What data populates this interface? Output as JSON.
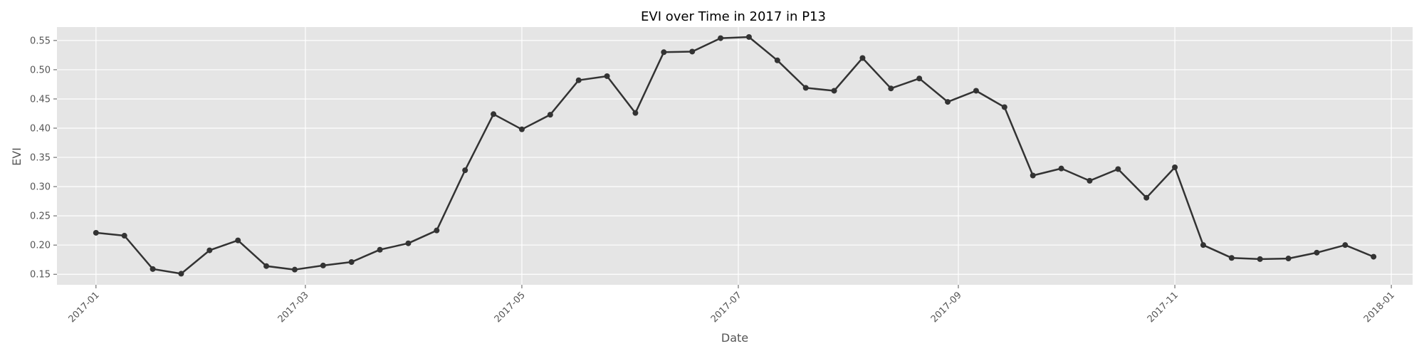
{
  "chart_data": {
    "type": "line",
    "title": "EVI over Time in 2017 in P13",
    "xlabel": "Date",
    "ylabel": "EVI",
    "x_type": "date",
    "xlim": [
      "2016-12-21",
      "2018-01-07"
    ],
    "ylim": [
      0.132,
      0.573
    ],
    "x_ticks": [
      {
        "date": "2017-01-01",
        "label": "2017-01"
      },
      {
        "date": "2017-03-01",
        "label": "2017-03"
      },
      {
        "date": "2017-05-01",
        "label": "2017-05"
      },
      {
        "date": "2017-07-01",
        "label": "2017-07"
      },
      {
        "date": "2017-09-01",
        "label": "2017-09"
      },
      {
        "date": "2017-11-01",
        "label": "2017-11"
      },
      {
        "date": "2018-01-01",
        "label": "2018-01"
      }
    ],
    "y_ticks": [
      {
        "value": 0.15,
        "label": "0.15"
      },
      {
        "value": 0.2,
        "label": "0.20"
      },
      {
        "value": 0.25,
        "label": "0.25"
      },
      {
        "value": 0.3,
        "label": "0.30"
      },
      {
        "value": 0.35,
        "label": "0.35"
      },
      {
        "value": 0.4,
        "label": "0.40"
      },
      {
        "value": 0.45,
        "label": "0.45"
      },
      {
        "value": 0.5,
        "label": "0.50"
      },
      {
        "value": 0.55,
        "label": "0.55"
      }
    ],
    "grid": true,
    "colors": {
      "background": "#e5e5e5",
      "grid": "#ffffff",
      "line": "#333333",
      "marker": "#333333"
    },
    "series": [
      {
        "x": [
          "2017-01-01",
          "2017-01-09",
          "2017-01-17",
          "2017-01-25",
          "2017-02-02",
          "2017-02-10",
          "2017-02-18",
          "2017-02-26",
          "2017-03-06",
          "2017-03-14",
          "2017-03-22",
          "2017-03-30",
          "2017-04-07",
          "2017-04-15",
          "2017-04-23",
          "2017-05-01",
          "2017-05-09",
          "2017-05-17",
          "2017-05-25",
          "2017-06-02",
          "2017-06-10",
          "2017-06-18",
          "2017-06-26",
          "2017-07-04",
          "2017-07-12",
          "2017-07-20",
          "2017-07-28",
          "2017-08-05",
          "2017-08-13",
          "2017-08-21",
          "2017-08-29",
          "2017-09-06",
          "2017-09-14",
          "2017-09-22",
          "2017-09-30",
          "2017-10-08",
          "2017-10-16",
          "2017-10-24",
          "2017-11-01",
          "2017-11-09",
          "2017-11-17",
          "2017-11-25",
          "2017-12-03",
          "2017-12-11",
          "2017-12-19",
          "2017-12-27"
        ],
        "y": [
          0.221,
          0.216,
          0.159,
          0.151,
          0.191,
          0.208,
          0.164,
          0.158,
          0.165,
          0.171,
          0.192,
          0.203,
          0.225,
          0.328,
          0.424,
          0.398,
          0.423,
          0.482,
          0.489,
          0.426,
          0.53,
          0.531,
          0.554,
          0.556,
          0.516,
          0.469,
          0.464,
          0.52,
          0.468,
          0.485,
          0.445,
          0.464,
          0.436,
          0.319,
          0.331,
          0.31,
          0.33,
          0.281,
          0.333,
          0.2,
          0.178,
          0.176,
          0.177,
          0.187,
          0.2,
          0.18
        ]
      }
    ]
  }
}
